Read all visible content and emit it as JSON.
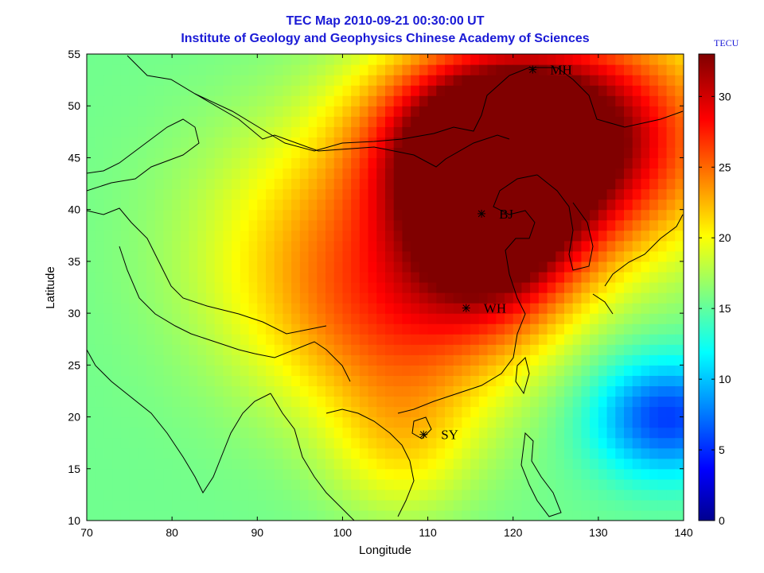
{
  "chart_data": {
    "type": "heatmap",
    "title": "TEC Map 2010-09-21 00:30:00 UT",
    "subtitle": "Institute of Geology and Geophysics Chinese Academy of Sciences",
    "xlabel": "Longitude",
    "ylabel": "Latitude",
    "xlim": [
      70,
      140
    ],
    "ylim": [
      10,
      55
    ],
    "xticks": [
      "70",
      "80",
      "90",
      "100",
      "110",
      "120",
      "130",
      "140"
    ],
    "yticks": [
      "10",
      "15",
      "20",
      "25",
      "30",
      "35",
      "40",
      "45",
      "50",
      "55"
    ],
    "colorbar": {
      "unit": "TECU",
      "range": [
        0,
        33
      ],
      "ticks": [
        "0",
        "5",
        "10",
        "15",
        "20",
        "25",
        "30"
      ],
      "colormap": "jet"
    },
    "stations": [
      {
        "name": "MH",
        "lon": 122.3,
        "lat": 53.5
      },
      {
        "name": "BJ",
        "lon": 116.3,
        "lat": 39.6
      },
      {
        "name": "WH",
        "lon": 114.5,
        "lat": 30.5
      },
      {
        "name": "SY",
        "lon": 109.5,
        "lat": 18.3
      }
    ],
    "field_peaks": [
      {
        "lon": 116.5,
        "lat": 46.5,
        "value": 33,
        "spread_lon": 9,
        "spread_lat": 6
      },
      {
        "lon": 128,
        "lat": 47,
        "value": 31,
        "spread_lon": 12,
        "spread_lat": 8
      },
      {
        "lon": 118,
        "lat": 37,
        "value": 29,
        "spread_lon": 7,
        "spread_lat": 6
      },
      {
        "lon": 100,
        "lat": 36,
        "value": 23,
        "spread_lon": 12,
        "spread_lat": 9
      },
      {
        "lon": 108,
        "lat": 28,
        "value": 22,
        "spread_lon": 10,
        "spread_lat": 7
      },
      {
        "lon": 107,
        "lat": 17,
        "value": 20,
        "spread_lon": 6,
        "spread_lat": 5
      },
      {
        "lon": 138,
        "lat": 20,
        "value": 6,
        "spread_lon": 6,
        "spread_lat": 4
      }
    ],
    "background_value": 16
  }
}
